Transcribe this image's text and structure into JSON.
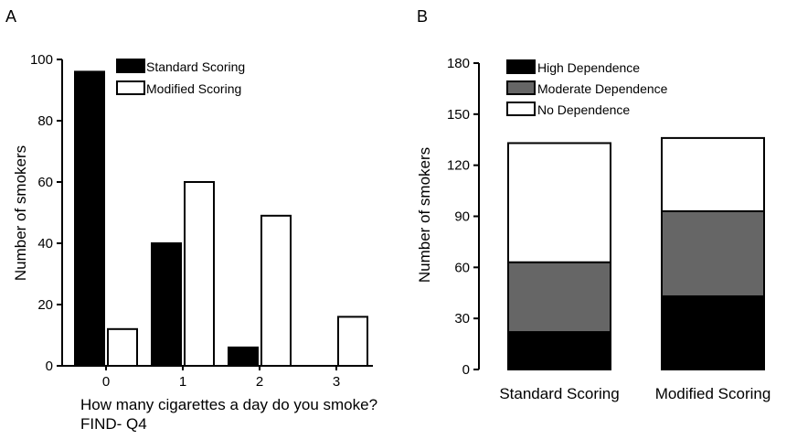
{
  "chart_data": [
    {
      "panel": "A",
      "type": "bar",
      "xlabel": "How many cigarettes a day do you smoke?",
      "xlabel2": "FIND- Q4",
      "ylabel": "Number of smokers",
      "ylim": [
        0,
        100
      ],
      "yticks": [
        0,
        20,
        40,
        60,
        80,
        100
      ],
      "categories": [
        "0",
        "1",
        "2",
        "3"
      ],
      "series": [
        {
          "name": "Standard Scoring",
          "color": "#000000",
          "values": [
            96,
            40,
            6,
            0
          ]
        },
        {
          "name": "Modified Scoring",
          "color": "#ffffff",
          "values": [
            12,
            60,
            49,
            16
          ]
        }
      ],
      "legend": "top-center",
      "grid": false
    },
    {
      "panel": "B",
      "type": "bar",
      "stacked": true,
      "ylabel": "Number of smokers",
      "ylim": [
        0,
        180
      ],
      "yticks": [
        0,
        30,
        60,
        90,
        120,
        150,
        180
      ],
      "categories": [
        "Standard Scoring",
        "Modified Scoring"
      ],
      "series": [
        {
          "name": "High Dependence",
          "color": "#000000",
          "values": [
            22,
            43
          ]
        },
        {
          "name": "Moderate Dependence",
          "color": "#666666",
          "values": [
            41,
            50
          ]
        },
        {
          "name": "No Dependence",
          "color": "#ffffff",
          "values": [
            70,
            43
          ]
        }
      ],
      "legend": "top-left",
      "grid": false
    }
  ]
}
